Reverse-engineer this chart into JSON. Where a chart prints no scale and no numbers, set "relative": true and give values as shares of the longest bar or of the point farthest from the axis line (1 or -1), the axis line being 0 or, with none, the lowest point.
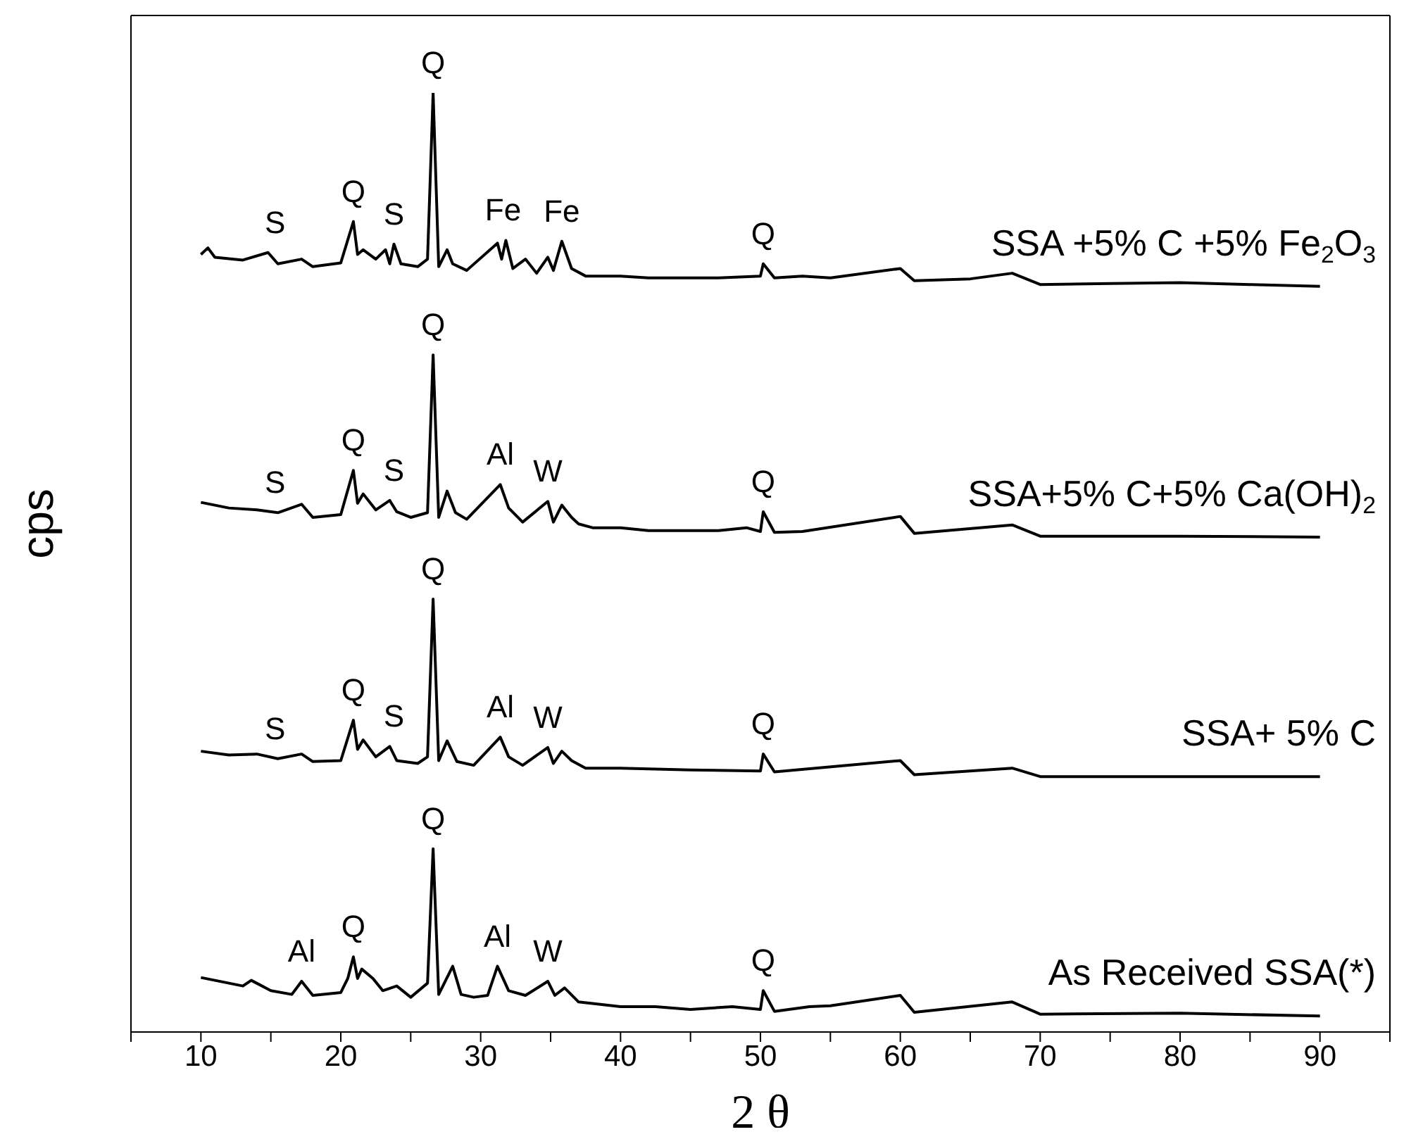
{
  "chart_data": {
    "type": "line",
    "relative": true,
    "xlabel": "2 θ",
    "ylabel": "cps",
    "xlim": [
      5,
      95
    ],
    "xticks": [
      {
        "value": 5,
        "label": null
      },
      10,
      {
        "value": 15,
        "label": null
      },
      20,
      {
        "value": 25,
        "label": null
      },
      30,
      {
        "value": 35,
        "label": null
      },
      40,
      {
        "value": 45,
        "label": null
      },
      50,
      {
        "value": 55,
        "label": null
      },
      60,
      {
        "value": 65,
        "label": null
      },
      70,
      {
        "value": 75,
        "label": null
      },
      80,
      {
        "value": 85,
        "label": null
      },
      90,
      {
        "value": 95,
        "label": null
      }
    ],
    "marker": "none",
    "line_style": "solid",
    "series": [
      {
        "name": "SSA +5% C +5% Fe$_{2}$O$_{3}$",
        "color": "#000000",
        "x": [
          10,
          10.5,
          11,
          13,
          14.8,
          15.5,
          17.2,
          18,
          20,
          20.9,
          21.2,
          21.6,
          22.5,
          23.2,
          23.5,
          23.8,
          24.3,
          25.5,
          26.2,
          26.6,
          27,
          27.6,
          28,
          29,
          31.2,
          31.5,
          31.8,
          32.3,
          33.2,
          34,
          34.8,
          35.2,
          35.8,
          36.5,
          37.5,
          40,
          42,
          47,
          50,
          50.2,
          51,
          53,
          55,
          60,
          61,
          65,
          68,
          70,
          75,
          80,
          85,
          90
        ],
        "values": [
          0.828,
          0.835,
          0.825,
          0.822,
          0.83,
          0.818,
          0.823,
          0.815,
          0.819,
          0.863,
          0.828,
          0.833,
          0.823,
          0.833,
          0.818,
          0.839,
          0.818,
          0.815,
          0.823,
          1.0,
          0.815,
          0.833,
          0.818,
          0.811,
          0.84,
          0.823,
          0.843,
          0.813,
          0.823,
          0.808,
          0.825,
          0.811,
          0.842,
          0.813,
          0.805,
          0.805,
          0.803,
          0.803,
          0.805,
          0.818,
          0.803,
          0.805,
          0.803,
          0.813,
          0.8,
          0.802,
          0.808,
          0.796,
          0.797,
          0.798,
          0.796,
          0.794
        ]
      },
      {
        "name": "SSA+5% C+5% Ca(OH)$_{2}$",
        "color": "#000000",
        "x": [
          10,
          12,
          14,
          15.5,
          17.2,
          18,
          20,
          20.9,
          21.2,
          21.6,
          22.5,
          23.5,
          24,
          25,
          26.2,
          26.6,
          27,
          27.6,
          28.2,
          29,
          31.4,
          32,
          33,
          34.8,
          35.2,
          35.8,
          36.5,
          37,
          38,
          40,
          42,
          47,
          49,
          50,
          50.2,
          51,
          53,
          60,
          61,
          68,
          70,
          80,
          90
        ],
        "values": [
          0.564,
          0.558,
          0.556,
          0.553,
          0.562,
          0.548,
          0.551,
          0.598,
          0.563,
          0.573,
          0.556,
          0.566,
          0.554,
          0.548,
          0.553,
          0.721,
          0.548,
          0.576,
          0.553,
          0.546,
          0.583,
          0.558,
          0.543,
          0.565,
          0.543,
          0.561,
          0.548,
          0.541,
          0.537,
          0.537,
          0.534,
          0.534,
          0.537,
          0.533,
          0.554,
          0.532,
          0.533,
          0.549,
          0.531,
          0.54,
          0.528,
          0.528,
          0.527
        ]
      },
      {
        "name": "SSA+ 5% C",
        "color": "#000000",
        "x": [
          10,
          12,
          14,
          15.5,
          17.2,
          18,
          20,
          20.9,
          21.2,
          21.6,
          22.5,
          23.5,
          24,
          25.5,
          26.2,
          26.6,
          27,
          27.6,
          28.3,
          29.5,
          31.4,
          32,
          33,
          34.8,
          35.2,
          35.8,
          36.5,
          37.5,
          40,
          45,
          50,
          50.2,
          51,
          60,
          61,
          68,
          70,
          90
        ],
        "values": [
          0.299,
          0.295,
          0.296,
          0.291,
          0.296,
          0.288,
          0.289,
          0.332,
          0.301,
          0.311,
          0.293,
          0.304,
          0.289,
          0.286,
          0.293,
          0.461,
          0.289,
          0.31,
          0.288,
          0.284,
          0.314,
          0.293,
          0.284,
          0.303,
          0.286,
          0.299,
          0.289,
          0.281,
          0.281,
          0.279,
          0.278,
          0.296,
          0.277,
          0.289,
          0.274,
          0.281,
          0.272,
          0.272
        ]
      },
      {
        "name": "As Received SSA(*)",
        "color": "#000000",
        "x": [
          10,
          11,
          13,
          13.6,
          15,
          16.5,
          17.2,
          18,
          20,
          20.5,
          20.9,
          21.2,
          21.5,
          22.3,
          23,
          24,
          25,
          26.2,
          26.6,
          27,
          28,
          28.6,
          29.5,
          30.5,
          31.2,
          32,
          33.2,
          34.8,
          35.3,
          36,
          37,
          40,
          42.5,
          45,
          48,
          50,
          50.2,
          51,
          53.5,
          55,
          60,
          61,
          68,
          70,
          80,
          90
        ],
        "values": [
          0.058,
          0.055,
          0.049,
          0.055,
          0.044,
          0.04,
          0.054,
          0.039,
          0.042,
          0.057,
          0.08,
          0.057,
          0.067,
          0.057,
          0.044,
          0.049,
          0.037,
          0.052,
          0.195,
          0.04,
          0.07,
          0.04,
          0.037,
          0.039,
          0.07,
          0.044,
          0.039,
          0.054,
          0.039,
          0.047,
          0.032,
          0.027,
          0.027,
          0.024,
          0.027,
          0.024,
          0.044,
          0.022,
          0.027,
          0.028,
          0.039,
          0.021,
          0.032,
          0.019,
          0.02,
          0.017
        ]
      }
    ],
    "annotations": [
      {
        "text": "S",
        "x": 15.3,
        "y": 0.83
      },
      {
        "text": "Q",
        "x": 20.9,
        "y": 0.863
      },
      {
        "text": "S",
        "x": 23.8,
        "y": 0.839
      },
      {
        "text": "Q",
        "x": 26.6,
        "y": 1.0
      },
      {
        "text": "Fe",
        "x": 31.6,
        "y": 0.843
      },
      {
        "text": "Fe",
        "x": 35.8,
        "y": 0.842
      },
      {
        "text": "Q",
        "x": 50.2,
        "y": 0.818
      },
      {
        "text": "S",
        "x": 15.3,
        "y": 0.553
      },
      {
        "text": "Q",
        "x": 20.9,
        "y": 0.598
      },
      {
        "text": "S",
        "x": 23.8,
        "y": 0.566
      },
      {
        "text": "Q",
        "x": 26.6,
        "y": 0.721
      },
      {
        "text": "Al",
        "x": 31.4,
        "y": 0.583
      },
      {
        "text": "W",
        "x": 34.8,
        "y": 0.565
      },
      {
        "text": "Q",
        "x": 50.2,
        "y": 0.554
      },
      {
        "text": "S",
        "x": 15.3,
        "y": 0.291
      },
      {
        "text": "Q",
        "x": 20.9,
        "y": 0.332
      },
      {
        "text": "S",
        "x": 23.8,
        "y": 0.304
      },
      {
        "text": "Q",
        "x": 26.6,
        "y": 0.461
      },
      {
        "text": "Al",
        "x": 31.4,
        "y": 0.314
      },
      {
        "text": "W",
        "x": 34.8,
        "y": 0.303
      },
      {
        "text": "Q",
        "x": 50.2,
        "y": 0.296
      },
      {
        "text": "Al",
        "x": 17.2,
        "y": 0.054
      },
      {
        "text": "Q",
        "x": 20.9,
        "y": 0.08
      },
      {
        "text": "Q",
        "x": 26.6,
        "y": 0.195
      },
      {
        "text": "Al",
        "x": 31.2,
        "y": 0.07
      },
      {
        "text": "W",
        "x": 34.8,
        "y": 0.054
      },
      {
        "text": "Q",
        "x": 50.2,
        "y": 0.044
      }
    ]
  }
}
